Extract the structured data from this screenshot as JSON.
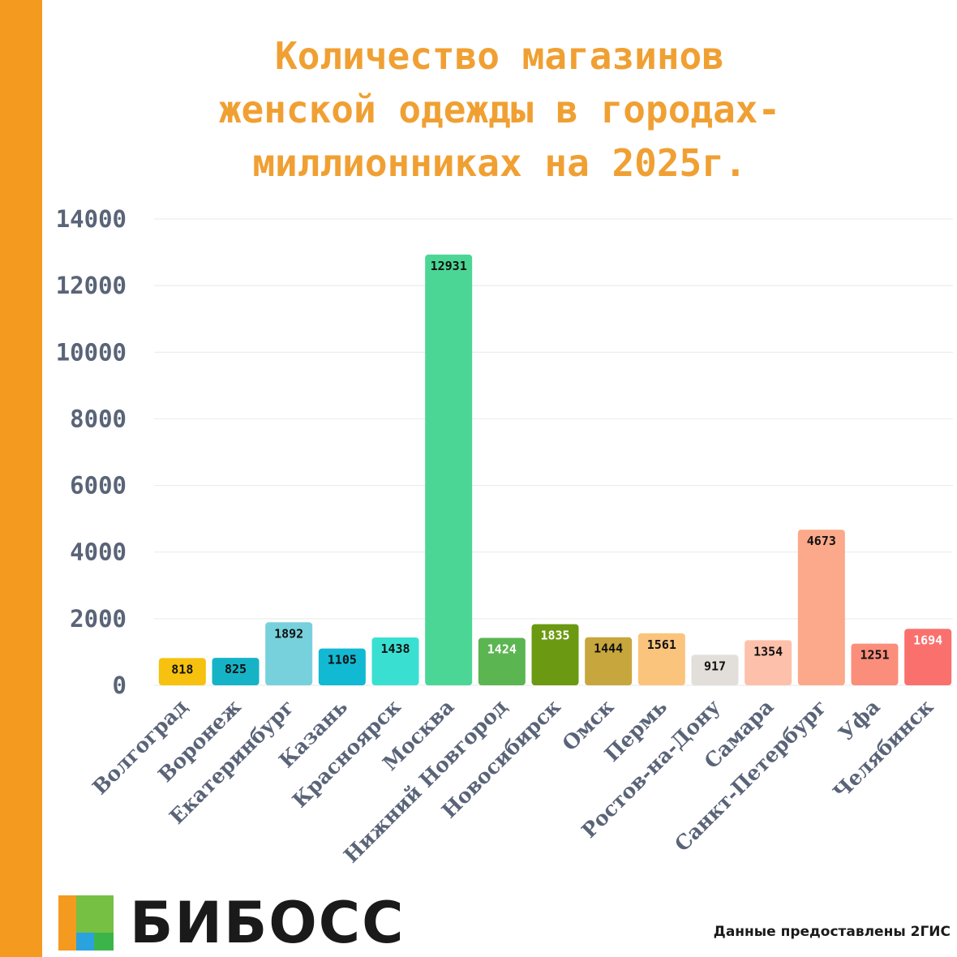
{
  "title_lines": [
    "Количество магазинов",
    "женской одежды в городах-",
    "миллионниках на 2025г."
  ],
  "brand": "БИБОСС",
  "source_note": "Данные предоставлены 2ГИС",
  "colors": {
    "accent_stripe": "#f39a1f",
    "title": "#f0a033",
    "axis_text": "#5a6478",
    "grid": "#e9e9e9"
  },
  "chart_data": {
    "type": "bar",
    "title": "Количество магазинов женской одежды в городах-миллионниках на 2025г.",
    "xlabel": "",
    "ylabel": "",
    "ylim": [
      0,
      14000
    ],
    "yticks": [
      0,
      2000,
      4000,
      6000,
      8000,
      10000,
      12000,
      14000
    ],
    "grid": true,
    "legend": "none",
    "categories": [
      "Волгоград",
      "Воронеж",
      "Екатеринбург",
      "Казань",
      "Красноярск",
      "Москва",
      "Нижний Новгород",
      "Новосибирск",
      "Омск",
      "Пермь",
      "Ростов-на-Дону",
      "Самара",
      "Санкт-Петербург",
      "Уфа",
      "Челябинск"
    ],
    "values": [
      818,
      825,
      1892,
      1105,
      1438,
      12931,
      1424,
      1835,
      1444,
      1561,
      917,
      1354,
      4673,
      1251,
      1694
    ],
    "bar_colors": [
      "#f6c20f",
      "#16b3c6",
      "#77d1dc",
      "#12b9d3",
      "#39e0d2",
      "#4bd696",
      "#5bb551",
      "#6b9a12",
      "#c7a63d",
      "#fbc47c",
      "#e2ded9",
      "#fdc1ab",
      "#fba98a",
      "#fb8d7b",
      "#f9706d"
    ],
    "label_colors": [
      "#111111",
      "#111111",
      "#111111",
      "#111111",
      "#111111",
      "#111111",
      "#ffffff",
      "#ffffff",
      "#111111",
      "#111111",
      "#111111",
      "#111111",
      "#111111",
      "#111111",
      "#ffffff"
    ]
  }
}
